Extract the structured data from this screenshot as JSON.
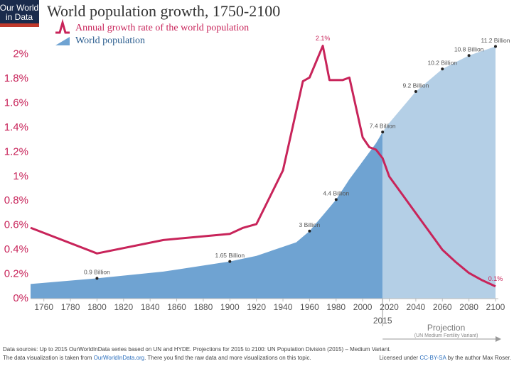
{
  "logo": [
    "Our World",
    "in Data"
  ],
  "chart_data": {
    "type": "line-area",
    "title": "World population growth, 1750-2100",
    "xlim": [
      1750,
      2100
    ],
    "xticks": [
      1760,
      1780,
      1800,
      1820,
      1840,
      1860,
      1880,
      1900,
      1920,
      1940,
      1960,
      1980,
      2000,
      2020,
      2040,
      2060,
      2080,
      2100
    ],
    "ylim": [
      0,
      2.12
    ],
    "yticks": [
      {
        "value": 0,
        "label": "0%"
      },
      {
        "value": 0.2,
        "label": "0.2%"
      },
      {
        "value": 0.4,
        "label": "0.4%"
      },
      {
        "value": 0.6,
        "label": "0.6%"
      },
      {
        "value": 0.8,
        "label": "0.8%"
      },
      {
        "value": 1,
        "label": "1%"
      },
      {
        "value": 1.2,
        "label": "1.2%"
      },
      {
        "value": 1.4,
        "label": "1.4%"
      },
      {
        "value": 1.6,
        "label": "1.6%"
      },
      {
        "value": 1.8,
        "label": "1.8%"
      },
      {
        "value": 2,
        "label": "2%"
      }
    ],
    "y2lim": [
      0,
      11.5
    ],
    "grid": false,
    "series": [
      {
        "name": "Annual growth rate of the world population",
        "kind": "line",
        "axis": "y",
        "color": "#c8245a",
        "x": [
          1750,
          1800,
          1850,
          1900,
          1910,
          1920,
          1940,
          1955,
          1960,
          1970,
          1975,
          1985,
          1990,
          2000,
          2005,
          2010,
          2015,
          2020,
          2030,
          2040,
          2050,
          2060,
          2070,
          2080,
          2090,
          2100
        ],
        "values": [
          0.58,
          0.37,
          0.48,
          0.53,
          0.58,
          0.61,
          1.05,
          1.78,
          1.81,
          2.07,
          1.79,
          1.79,
          1.81,
          1.32,
          1.24,
          1.22,
          1.15,
          1.0,
          0.85,
          0.7,
          0.55,
          0.4,
          0.3,
          0.21,
          0.15,
          0.1
        ],
        "value_labels": [
          null,
          null,
          null,
          null,
          null,
          null,
          null,
          null,
          null,
          "2.1%",
          null,
          null,
          null,
          null,
          null,
          null,
          null,
          null,
          null,
          null,
          null,
          null,
          null,
          null,
          null,
          "0.1%"
        ]
      },
      {
        "name": "World population",
        "kind": "area",
        "axis": "y2",
        "color": "#6fa3d2",
        "projection_color": "#b4cfe6",
        "x": [
          1750,
          1800,
          1850,
          1900,
          1920,
          1940,
          1950,
          1960,
          1970,
          1980,
          1990,
          2000,
          2010,
          2015,
          2020,
          2040,
          2060,
          2080,
          2100
        ],
        "values": [
          0.65,
          0.9,
          1.2,
          1.65,
          1.9,
          2.3,
          2.5,
          3.0,
          3.7,
          4.4,
          5.3,
          6.1,
          6.9,
          7.4,
          7.8,
          9.2,
          10.2,
          10.8,
          11.2
        ],
        "value_labels": [
          null,
          "0.9 Billion",
          null,
          "1.65 Billion",
          null,
          null,
          null,
          "3 Billion",
          null,
          "4.4 Billion",
          null,
          null,
          null,
          "7.4 Billion",
          null,
          "9.2 Billion",
          "10.2 Billion",
          "10.8 Billion",
          "11.2 Billion"
        ]
      }
    ],
    "projection": {
      "start": 2015,
      "label": "Projection",
      "sublabel": "(UN Medium Fertility Variant)"
    }
  },
  "footer": {
    "sources": "Data sources:  Up to 2015 OurWorldInData series based on UN and HYDE. Projections for 2015 to 2100: UN Population Division (2015) – Medium Variant.",
    "visualization": [
      "The data visualization is taken from ",
      "OurWorldInData.org",
      ". There you find the raw data and more visualizations on this topic."
    ],
    "license": [
      "Licensed under ",
      "CC-BY-SA",
      " by the author Max Roser."
    ]
  }
}
